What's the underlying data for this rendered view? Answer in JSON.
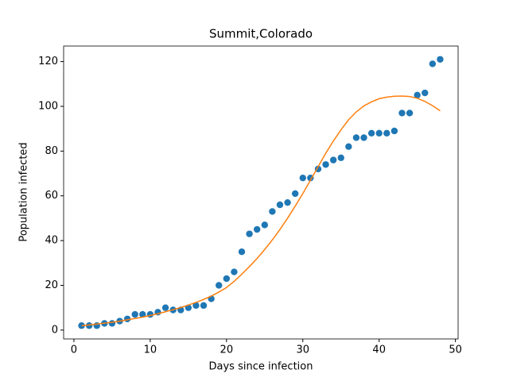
{
  "chart_data": {
    "type": "scatter",
    "title": "Summit,Colorado",
    "x_label": "Days since infection",
    "y_label": "Population infected",
    "x": [
      1,
      2,
      3,
      4,
      5,
      6,
      7,
      8,
      9,
      10,
      11,
      12,
      13,
      14,
      15,
      16,
      17,
      18,
      19,
      20,
      21,
      22,
      23,
      24,
      25,
      26,
      27,
      28,
      29,
      30,
      31,
      32,
      33,
      34,
      35,
      36,
      37,
      38,
      39,
      40,
      41,
      42,
      43,
      44,
      45,
      46,
      47,
      48
    ],
    "series": [
      {
        "type": "scatter",
        "color": "#1f77b4",
        "values": [
          2,
          2,
          2,
          3,
          3,
          4,
          5,
          7,
          7,
          7,
          8,
          10,
          9,
          9,
          10,
          11,
          11,
          14,
          20,
          23,
          26,
          35,
          43,
          45,
          47,
          53,
          56,
          57,
          61,
          68,
          68,
          72,
          74,
          76,
          77,
          82,
          86,
          86,
          88,
          88,
          88,
          89,
          97,
          97,
          105,
          106,
          119,
          121
        ]
      },
      {
        "type": "line",
        "color": "#ff7f0e",
        "values": [
          2.0,
          2.3,
          2.7,
          3.1,
          3.5,
          4.0,
          4.6,
          5.2,
          5.8,
          6.5,
          7.3,
          8.2,
          9.1,
          10.1,
          11.2,
          12.4,
          13.7,
          15.2,
          17.0,
          19.0,
          21.8,
          25.0,
          28.4,
          32.0,
          36.0,
          40.3,
          45.0,
          50.0,
          55.4,
          61.0,
          67.0,
          73.0,
          79.0,
          84.5,
          89.5,
          94.0,
          97.5,
          100.2,
          102.0,
          103.4,
          104.1,
          104.5,
          104.6,
          104.4,
          103.6,
          102.2,
          100.3,
          98.0
        ]
      }
    ],
    "xlim": [
      -1.35,
      50.35
    ],
    "ylim": [
      -3.95,
      126.95
    ],
    "xticks": [
      0,
      10,
      20,
      30,
      40,
      50
    ],
    "yticks": [
      0,
      20,
      40,
      60,
      80,
      100,
      120
    ],
    "grid": false
  }
}
